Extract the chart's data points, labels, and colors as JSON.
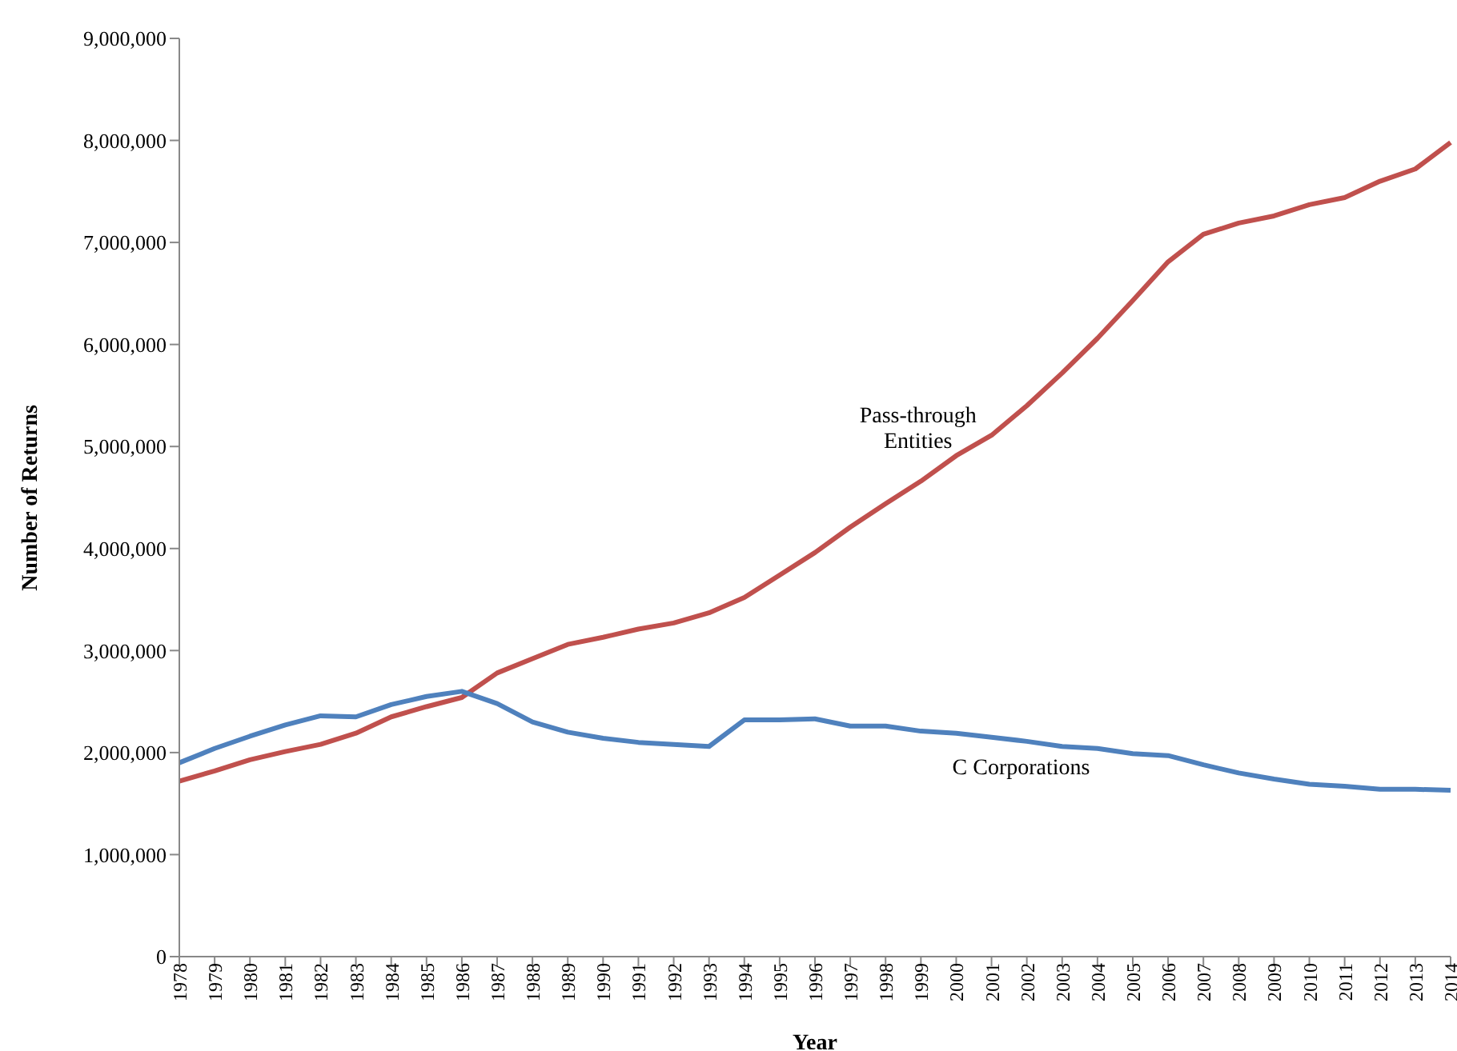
{
  "chart_data": {
    "type": "line",
    "xlabel": "Year",
    "ylabel": "Number of Returns",
    "categories": [
      "1978",
      "1979",
      "1980",
      "1981",
      "1982",
      "1983",
      "1984",
      "1985",
      "1986",
      "1987",
      "1988",
      "1989",
      "1990",
      "1991",
      "1992",
      "1993",
      "1994",
      "1995",
      "1996",
      "1997",
      "1998",
      "1999",
      "2000",
      "2001",
      "2002",
      "2003",
      "2004",
      "2005",
      "2006",
      "2007",
      "2008",
      "2009",
      "2010",
      "2011",
      "2012",
      "2013",
      "2014"
    ],
    "series": [
      {
        "name": "Pass-through Entities",
        "color": "#c0504d",
        "values": [
          1720000,
          1820000,
          1930000,
          2010000,
          2080000,
          2190000,
          2350000,
          2450000,
          2540000,
          2780000,
          2920000,
          3060000,
          3130000,
          3210000,
          3270000,
          3370000,
          3520000,
          3740000,
          3960000,
          4210000,
          4440000,
          4660000,
          4910000,
          5110000,
          5400000,
          5720000,
          6060000,
          6430000,
          6810000,
          7080000,
          7190000,
          7260000,
          7370000,
          7440000,
          7600000,
          7720000,
          7980000
        ]
      },
      {
        "name": "C Corporations",
        "color": "#4f81bd",
        "values": [
          1900000,
          2040000,
          2160000,
          2270000,
          2360000,
          2350000,
          2470000,
          2550000,
          2600000,
          2480000,
          2300000,
          2200000,
          2140000,
          2100000,
          2080000,
          2060000,
          2320000,
          2320000,
          2330000,
          2260000,
          2260000,
          2210000,
          2190000,
          2150000,
          2110000,
          2060000,
          2040000,
          1990000,
          1970000,
          1880000,
          1800000,
          1740000,
          1690000,
          1670000,
          1640000,
          1640000,
          1630000
        ]
      }
    ],
    "ylim": [
      0,
      9000000
    ],
    "yticks": [
      0,
      {
        "value": 1000000,
        "label": "1,000,000"
      },
      {
        "value": 2000000,
        "label": "2,000,000"
      },
      {
        "value": 3000000,
        "label": "3,000,000"
      },
      {
        "value": 4000000,
        "label": "4,000,000"
      },
      {
        "value": 5000000,
        "label": "5,000,000"
      },
      {
        "value": 6000000,
        "label": "6,000,000"
      },
      {
        "value": 7000000,
        "label": "7,000,000"
      },
      {
        "value": 8000000,
        "label": "8,000,000"
      },
      {
        "value": 9000000,
        "label": "9,000,000"
      }
    ],
    "grid": false,
    "legend": false,
    "marker": "none",
    "line_style": "solid"
  }
}
